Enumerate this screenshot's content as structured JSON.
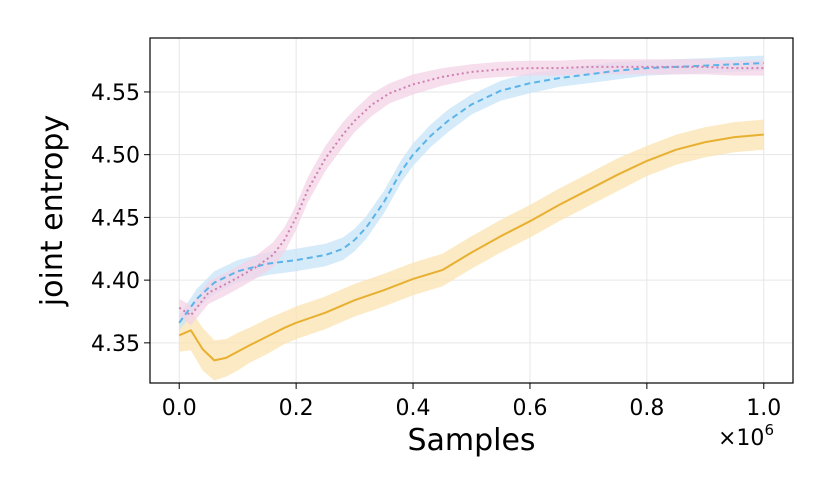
{
  "chart_data": {
    "type": "line",
    "title": "",
    "xlabel": "Samples",
    "ylabel": "joint entropy",
    "x_multiplier": "×10",
    "x_multiplier_exp": "6",
    "xlim": [
      -0.05,
      1.05
    ],
    "ylim": [
      4.318,
      4.593
    ],
    "xticks": [
      0.0,
      0.2,
      0.4,
      0.6,
      0.8,
      1.0
    ],
    "xtick_labels": [
      "0.0",
      "0.2",
      "0.4",
      "0.6",
      "0.8",
      "1.0"
    ],
    "yticks": [
      4.35,
      4.4,
      4.45,
      4.5,
      4.55
    ],
    "ytick_labels": [
      "4.35",
      "4.40",
      "4.45",
      "4.50",
      "4.55"
    ],
    "grid": true,
    "series": [
      {
        "name": "series-yellow",
        "color": "#e8b030",
        "band_color": "#fbe3b0",
        "style": "solid",
        "x": [
          0.0,
          0.02,
          0.04,
          0.06,
          0.08,
          0.1,
          0.12,
          0.15,
          0.18,
          0.2,
          0.25,
          0.3,
          0.35,
          0.4,
          0.45,
          0.5,
          0.55,
          0.6,
          0.65,
          0.7,
          0.75,
          0.8,
          0.85,
          0.9,
          0.95,
          1.0
        ],
        "y": [
          4.356,
          4.36,
          4.345,
          4.336,
          4.338,
          4.343,
          4.348,
          4.355,
          4.362,
          4.366,
          4.374,
          4.384,
          4.392,
          4.401,
          4.408,
          4.422,
          4.435,
          4.447,
          4.46,
          4.472,
          4.484,
          4.495,
          4.504,
          4.51,
          4.514,
          4.516
        ],
        "band": [
          0.013,
          0.016,
          0.017,
          0.016,
          0.015,
          0.015,
          0.014,
          0.014,
          0.013,
          0.013,
          0.013,
          0.013,
          0.013,
          0.013,
          0.013,
          0.013,
          0.013,
          0.013,
          0.013,
          0.013,
          0.013,
          0.012,
          0.012,
          0.012,
          0.012,
          0.012
        ]
      },
      {
        "name": "series-blue",
        "color": "#5ab4e8",
        "band_color": "#c8e4f8",
        "style": "dashed",
        "x": [
          0.0,
          0.03,
          0.06,
          0.1,
          0.15,
          0.2,
          0.25,
          0.28,
          0.3,
          0.32,
          0.35,
          0.38,
          0.4,
          0.43,
          0.46,
          0.5,
          0.55,
          0.6,
          0.65,
          0.7,
          0.75,
          0.8,
          0.85,
          0.9,
          0.95,
          1.0
        ],
        "y": [
          4.366,
          4.385,
          4.398,
          4.407,
          4.413,
          4.416,
          4.42,
          4.425,
          4.432,
          4.442,
          4.462,
          4.487,
          4.5,
          4.515,
          4.527,
          4.54,
          4.551,
          4.557,
          4.561,
          4.564,
          4.567,
          4.569,
          4.57,
          4.571,
          4.572,
          4.573
        ],
        "band": [
          0.006,
          0.008,
          0.009,
          0.009,
          0.009,
          0.009,
          0.009,
          0.009,
          0.009,
          0.009,
          0.009,
          0.009,
          0.009,
          0.009,
          0.009,
          0.008,
          0.008,
          0.008,
          0.007,
          0.007,
          0.007,
          0.006,
          0.006,
          0.006,
          0.006,
          0.006
        ]
      },
      {
        "name": "series-pink",
        "color": "#d080b0",
        "band_color": "#f3d3e6",
        "style": "dotted",
        "x": [
          0.0,
          0.02,
          0.05,
          0.08,
          0.1,
          0.13,
          0.16,
          0.18,
          0.2,
          0.22,
          0.25,
          0.28,
          0.3,
          0.33,
          0.36,
          0.4,
          0.45,
          0.5,
          0.55,
          0.6,
          0.65,
          0.7,
          0.75,
          0.8,
          0.85,
          0.9,
          0.95,
          1.0
        ],
        "y": [
          4.378,
          4.372,
          4.39,
          4.397,
          4.402,
          4.41,
          4.42,
          4.432,
          4.45,
          4.472,
          4.497,
          4.516,
          4.527,
          4.54,
          4.549,
          4.556,
          4.562,
          4.566,
          4.568,
          4.569,
          4.569,
          4.57,
          4.57,
          4.57,
          4.57,
          4.57,
          4.569,
          4.569
        ],
        "band": [
          0.007,
          0.008,
          0.009,
          0.009,
          0.009,
          0.009,
          0.01,
          0.01,
          0.01,
          0.01,
          0.01,
          0.01,
          0.009,
          0.009,
          0.008,
          0.008,
          0.007,
          0.006,
          0.006,
          0.006,
          0.006,
          0.006,
          0.006,
          0.006,
          0.006,
          0.006,
          0.006,
          0.006
        ]
      }
    ]
  }
}
